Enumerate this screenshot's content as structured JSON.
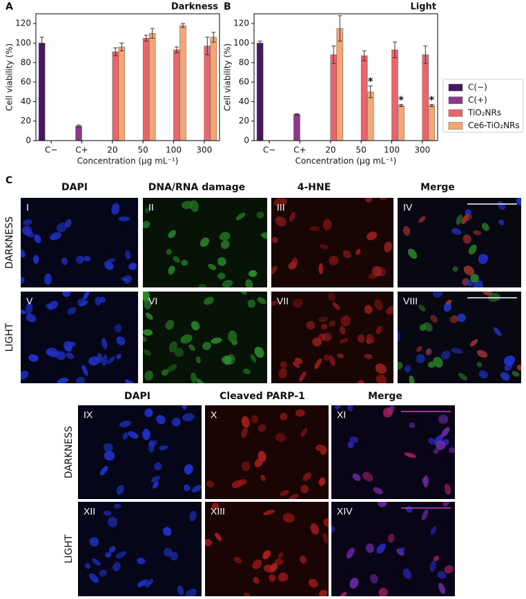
{
  "chart_data": [
    {
      "type": "bar",
      "panel": "A",
      "title": "Darkness",
      "xlabel": "Concentration (μg mL⁻¹)",
      "ylabel": "Cell viability (%)",
      "categories": [
        "C−",
        "C+",
        "20",
        "50",
        "100",
        "300"
      ],
      "series": [
        {
          "name": "C(−)",
          "color": "#45185f",
          "values": [
            100,
            null,
            null,
            null,
            null,
            null
          ],
          "errors": [
            6,
            null,
            null,
            null,
            null,
            null
          ]
        },
        {
          "name": "C(+)",
          "color": "#8c3a86",
          "values": [
            null,
            15,
            null,
            null,
            null,
            null
          ],
          "errors": [
            null,
            1,
            null,
            null,
            null,
            null
          ]
        },
        {
          "name": "TiO₂NRs",
          "color": "#e8656e",
          "values": [
            null,
            null,
            91,
            105,
            93,
            97
          ],
          "errors": [
            null,
            null,
            4,
            3,
            3,
            9
          ]
        },
        {
          "name": "Ce6-TiO₂NRs",
          "color": "#f6a672",
          "values": [
            null,
            null,
            96,
            110,
            118,
            106
          ],
          "errors": [
            null,
            null,
            4,
            5,
            2,
            5
          ]
        }
      ],
      "ylim": [
        0,
        130
      ],
      "yticks": [
        0,
        20,
        40,
        60,
        80,
        100,
        120
      ],
      "grid": false
    },
    {
      "type": "bar",
      "panel": "B",
      "title": "Light",
      "xlabel": "Concentration (μg mL⁻¹)",
      "ylabel": "Cell viability (%)",
      "categories": [
        "C−",
        "C+",
        "20",
        "50",
        "100",
        "300"
      ],
      "series": [
        {
          "name": "C(−)",
          "color": "#45185f",
          "values": [
            100,
            null,
            null,
            null,
            null,
            null
          ],
          "errors": [
            2,
            null,
            null,
            null,
            null,
            null
          ]
        },
        {
          "name": "C(+)",
          "color": "#8c3a86",
          "values": [
            null,
            27,
            null,
            null,
            null,
            null
          ],
          "errors": [
            null,
            0.5,
            null,
            null,
            null,
            null
          ]
        },
        {
          "name": "TiO₂NRs",
          "color": "#e8656e",
          "values": [
            null,
            null,
            88,
            87,
            93,
            88
          ],
          "errors": [
            null,
            null,
            9,
            5,
            8,
            9
          ]
        },
        {
          "name": "Ce6-TiO₂NRs",
          "color": "#f6a672",
          "values": [
            null,
            null,
            115,
            50,
            36,
            36
          ],
          "errors": [
            null,
            null,
            13,
            6,
            1,
            1
          ],
          "markers": [
            null,
            null,
            null,
            "*",
            "*",
            "*"
          ]
        }
      ],
      "ylim": [
        0,
        130
      ],
      "yticks": [
        0,
        20,
        40,
        60,
        80,
        100,
        120
      ],
      "grid": false,
      "legend": "right"
    }
  ],
  "panel_c": {
    "label": "C",
    "columns": [
      "DAPI",
      "DNA/RNA damage",
      "4-HNE",
      "Merge"
    ],
    "rows": [
      "DARKNESS",
      "LIGHT"
    ],
    "panels": [
      "I",
      "II",
      "III",
      "IV",
      "V",
      "VI",
      "VII",
      "VIII"
    ]
  },
  "panel_d": {
    "columns": [
      "DAPI",
      "Cleaved PARP-1",
      "Merge"
    ],
    "rows": [
      "DARKNESS",
      "LIGHT"
    ],
    "panels": [
      "IX",
      "X",
      "XI",
      "XII",
      "XIII",
      "XIV"
    ]
  }
}
